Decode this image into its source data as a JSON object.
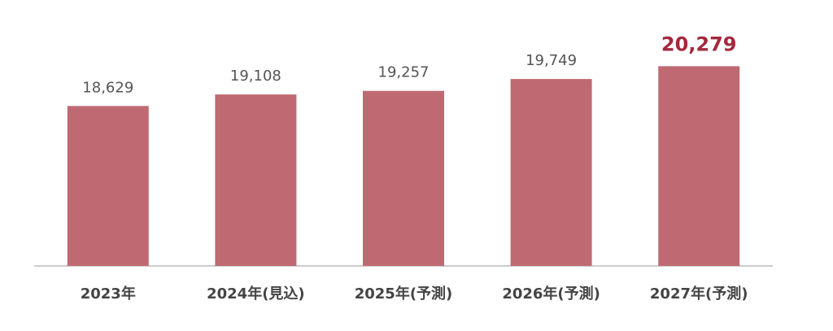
{
  "chart_data": {
    "type": "bar",
    "categories": [
      "2023年",
      "2024年(見込)",
      "2025年(予測)",
      "2026年(予測)",
      "2027年(予測)"
    ],
    "values": [
      18629,
      19108,
      19257,
      19749,
      20279
    ],
    "value_labels": [
      "18,629",
      "19,108",
      "19,257",
      "19,749",
      "20,279"
    ],
    "label_colors": [
      "#555555",
      "#555555",
      "#555555",
      "#555555",
      "#a32a3c"
    ],
    "color": "#bf6a73",
    "ylim": [
      12000,
      21000
    ]
  }
}
